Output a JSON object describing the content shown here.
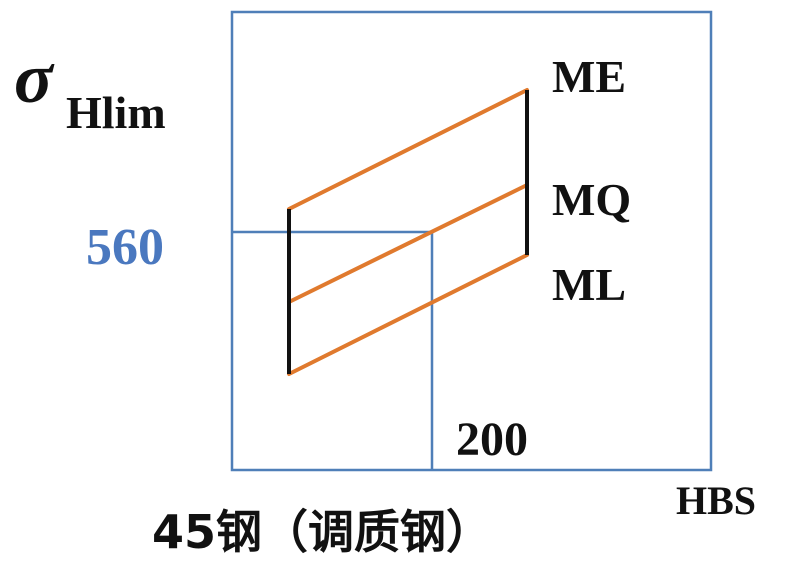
{
  "diagram": {
    "y_symbol": "σ",
    "y_subscript": "Hlim",
    "y_value_label": "560",
    "x_value_label": "200",
    "x_unit_label": "HBS",
    "material_label": "45钢（调质钢）",
    "lines": [
      {
        "label": "ME"
      },
      {
        "label": "MQ"
      },
      {
        "label": "ML"
      }
    ]
  },
  "colors": {
    "frame": "#4f7fb8",
    "guide": "#4f7fb8",
    "value_text": "#4a78bf",
    "band_lines": "#e07a2e",
    "boundary": "#111111",
    "text": "#111111"
  }
}
